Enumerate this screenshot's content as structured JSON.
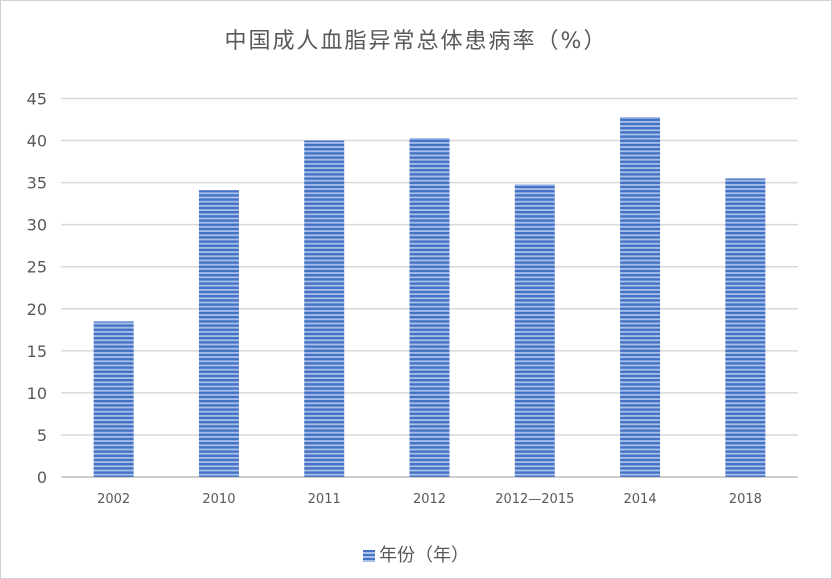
{
  "chart_data": {
    "type": "bar",
    "title": "中国成人血脂异常总体患病率（%）",
    "categories": [
      "2002",
      "2010",
      "2011",
      "2012",
      "2012—2015",
      "2014",
      "2018"
    ],
    "series": [
      {
        "name": "年份（年）",
        "values": [
          18.5,
          34.1,
          40.0,
          40.3,
          34.8,
          42.8,
          35.5
        ]
      }
    ],
    "ylim": [
      0,
      45
    ],
    "yticks": [
      0,
      5,
      10,
      15,
      20,
      25,
      30,
      35,
      40,
      45
    ],
    "grid": true,
    "legend": "bottom",
    "color": "#4472c4"
  }
}
